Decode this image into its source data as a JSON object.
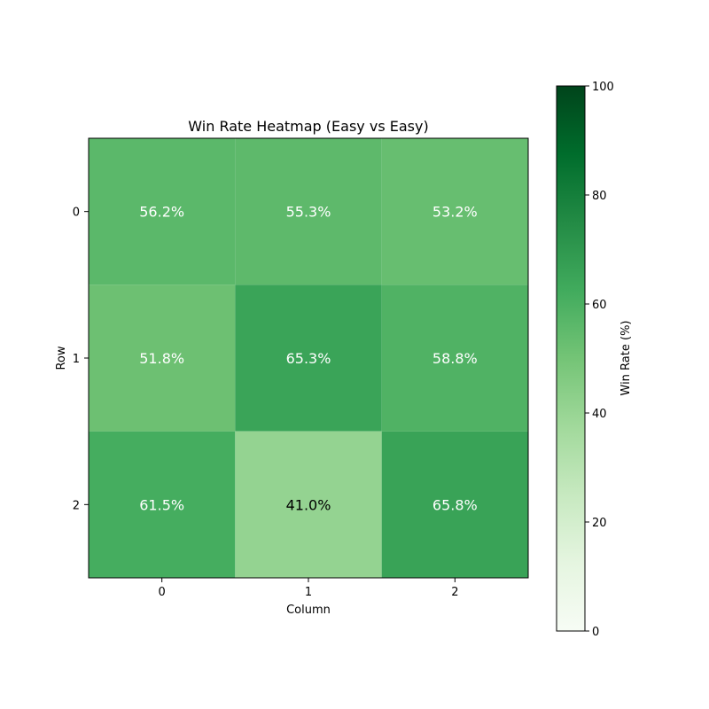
{
  "chart_data": {
    "type": "heatmap",
    "title": "Win Rate Heatmap (Easy vs Easy)",
    "xlabel": "Column",
    "ylabel": "Row",
    "x_categories": [
      "0",
      "1",
      "2"
    ],
    "y_categories": [
      "0",
      "1",
      "2"
    ],
    "values": [
      [
        56.2,
        55.3,
        53.2
      ],
      [
        51.8,
        65.3,
        58.8
      ],
      [
        61.5,
        41.0,
        65.8
      ]
    ],
    "value_format": "%",
    "colormap": "Greens",
    "vmin": 0,
    "vmax": 100,
    "colorbar": {
      "label": "Win Rate (%)",
      "ticks": [
        0,
        20,
        40,
        60,
        80,
        100
      ]
    },
    "text_color_light": "#ffffff",
    "text_color_dark": "#000000"
  }
}
